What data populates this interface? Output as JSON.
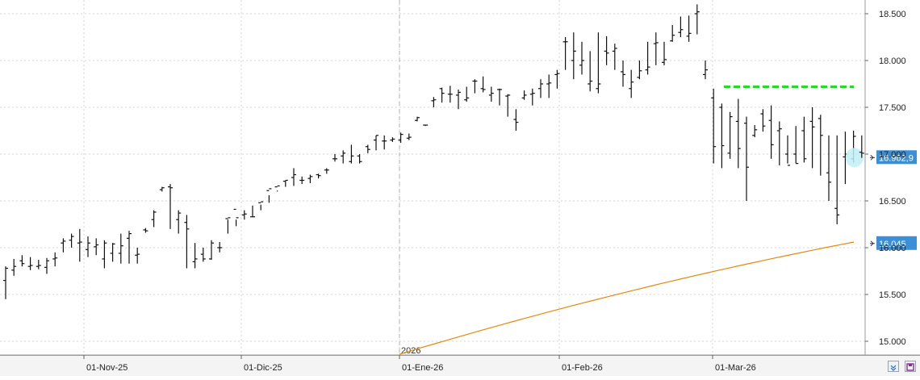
{
  "chart_data": {
    "type": "ohlc",
    "title": "",
    "xlabel": "",
    "ylabel": "",
    "ylim": [
      14850,
      18650
    ],
    "y_ticks": [
      15000,
      15500,
      16000,
      16500,
      17000,
      17500,
      18000,
      18500
    ],
    "y_tick_labels": [
      "15.000",
      "15.500",
      "16.000",
      "16.500",
      "17.000",
      "17.500",
      "18.000",
      "18.500"
    ],
    "x_ticks": [
      {
        "date": "2025-11-01",
        "label": "01-Nov-25"
      },
      {
        "date": "2025-12-01",
        "label": "01-Dic-25"
      },
      {
        "date": "2026-01-01",
        "label": "01-Ene-26"
      },
      {
        "date": "2026-02-01",
        "label": "01-Feb-26"
      },
      {
        "date": "2026-03-01",
        "label": "01-Mar-26"
      }
    ],
    "year_marker": {
      "date": "2026-01-01",
      "label": "2026"
    },
    "grid": true,
    "bars_high": [
      15800,
      15880,
      15920,
      15900,
      15870,
      15890,
      15950,
      16100,
      16150,
      16200,
      16120,
      16100,
      16080,
      16050,
      16150,
      16180,
      16000,
      16210,
      16400,
      16650,
      16680,
      16400,
      16350,
      16050,
      16000,
      16080,
      16060,
      16150,
      16230,
      16400,
      16450,
      16400,
      16480,
      16610,
      16720,
      16850,
      16760,
      16780,
      16790,
      16850,
      17000,
      17040,
      17100,
      17000,
      17100,
      17200,
      17200,
      17180,
      17230,
      17220,
      17400,
      17310,
      17610,
      17710,
      17730,
      17690,
      17720,
      17800,
      17830,
      17720,
      17700,
      17640,
      17480,
      17680,
      17700,
      17800,
      17850,
      17900,
      18250,
      18300,
      18200,
      18100,
      18300,
      18260,
      18180,
      18000,
      17900,
      18000,
      18200,
      18300,
      18200,
      18380,
      18470,
      18480,
      18600,
      18000,
      17700,
      17540,
      17450,
      17590,
      17400,
      17310,
      17480,
      17520,
      17350,
      17200,
      17300,
      17400,
      17500,
      17420,
      17200,
      17200,
      17240,
      17250,
      17200
    ],
    "bars_low": [
      15450,
      15700,
      15800,
      15760,
      15770,
      15720,
      15800,
      15950,
      16000,
      15850,
      15900,
      15920,
      15780,
      15850,
      15830,
      15830,
      15830,
      16160,
      16220,
      16600,
      16200,
      16150,
      15780,
      15780,
      15850,
      15870,
      15950,
      16300,
      16300,
      16300,
      16330,
      16460,
      16560,
      16600,
      16650,
      16660,
      16680,
      16690,
      16740,
      16790,
      16920,
      16900,
      16900,
      16900,
      17010,
      17040,
      17050,
      17130,
      17120,
      17150,
      17350,
      17300,
      17500,
      17550,
      17550,
      17480,
      17560,
      17650,
      17660,
      17560,
      17520,
      17400,
      17250,
      17580,
      17520,
      17600,
      17600,
      17700,
      17900,
      17800,
      17850,
      17670,
      17650,
      17950,
      17900,
      17720,
      17600,
      17800,
      17850,
      17950,
      17950,
      18200,
      18250,
      18200,
      18280,
      17800,
      16900,
      16850,
      16950,
      16850,
      16500,
      17180,
      17240,
      16950,
      16880,
      16900,
      16900,
      16910,
      16850,
      16770,
      16500,
      16250,
      16680,
      16910,
      16960
    ],
    "bars_open": [
      15650,
      15760,
      15860,
      15800,
      15800,
      15790,
      15880,
      16050,
      16080,
      16050,
      15980,
      16010,
      15880,
      15940,
      15940,
      16100,
      15920,
      16190,
      16300,
      16620,
      16650,
      16300,
      16270,
      15850,
      15930,
      15880,
      16000,
      16310,
      16410,
      16350,
      16330,
      16480,
      16610,
      16650,
      16710,
      16750,
      16720,
      16740,
      16780,
      16830,
      16950,
      16980,
      16920,
      16980,
      17080,
      17150,
      17140,
      17150,
      17150,
      17170,
      17360,
      17310,
      17570,
      17700,
      17640,
      17630,
      17580,
      17780,
      17700,
      17630,
      17690,
      17620,
      17370,
      17600,
      17640,
      17700,
      17750,
      17850,
      18200,
      18000,
      17950,
      17750,
      17700,
      18100,
      18100,
      17880,
      17700,
      17820,
      17900,
      18180,
      17980,
      18210,
      18300,
      18260,
      18500,
      17850,
      17600,
      17500,
      17010,
      17350,
      17330,
      17200,
      17430,
      17360,
      17250,
      17000,
      17000,
      17250,
      17350,
      17380,
      16800,
      16420,
      16970,
      16950,
      17020
    ],
    "bars_close": [
      15780,
      15800,
      15830,
      15810,
      15810,
      15860,
      15890,
      16070,
      16120,
      16060,
      16050,
      16030,
      16050,
      16040,
      16020,
      16150,
      15930,
      16180,
      16380,
      16640,
      16640,
      16370,
      16200,
      15880,
      15880,
      16050,
      16000,
      16320,
      16320,
      16360,
      16330,
      16490,
      16630,
      16660,
      16720,
      16780,
      16720,
      16760,
      16770,
      16830,
      16950,
      17010,
      16980,
      16920,
      17050,
      17200,
      17140,
      17160,
      17210,
      17180,
      17390,
      17310,
      17580,
      17650,
      17640,
      17660,
      17600,
      17780,
      17690,
      17650,
      17690,
      17630,
      17340,
      17630,
      17650,
      17750,
      17760,
      17860,
      18200,
      18100,
      18000,
      17780,
      17750,
      18080,
      18130,
      17850,
      17770,
      17890,
      17930,
      18190,
      18010,
      18270,
      18330,
      18290,
      18520,
      17900,
      17080,
      17090,
      17400,
      17060,
      16860,
      17260,
      17300,
      17100,
      17270,
      16880,
      16900,
      16950,
      17290,
      17200,
      16700,
      16350,
      17000,
      17190,
      17010
    ],
    "series": [
      {
        "kind": "moving-average",
        "color": "#e8870c",
        "x_index": [
          93,
          104
        ],
        "y": [
          14862,
          16060
        ]
      }
    ],
    "horizontal_line": {
      "value": 17720,
      "color": "#22dd22",
      "dash": true,
      "x_index": [
        91,
        104
      ]
    },
    "last_value_labels": [
      {
        "value": 16962.9,
        "label": "16.962,9",
        "color": "#3b8fd6"
      },
      {
        "value": 16045,
        "label": "16.045",
        "color": "#3b8fd6"
      }
    ]
  }
}
